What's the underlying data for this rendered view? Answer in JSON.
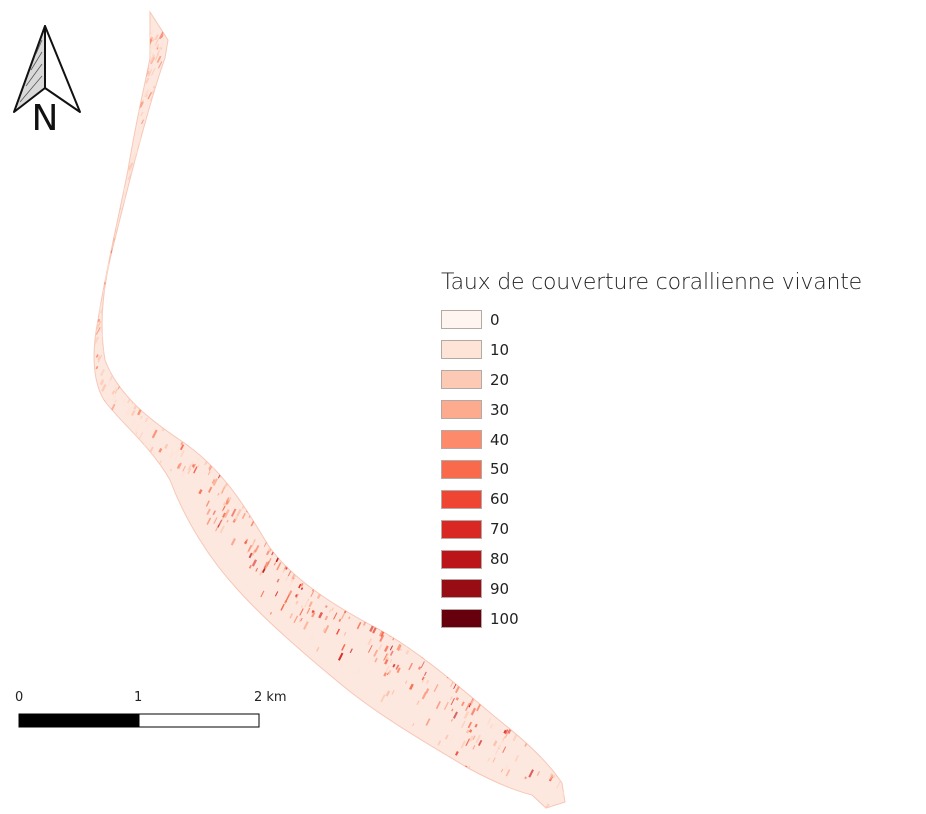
{
  "north_arrow": {
    "label": "N"
  },
  "legend": {
    "title": "Taux de couverture corallienne vivante",
    "classes": [
      {
        "label": "0",
        "color": "#fff5f0"
      },
      {
        "label": "10",
        "color": "#fee3d7"
      },
      {
        "label": "20",
        "color": "#fcc9b4"
      },
      {
        "label": "30",
        "color": "#fcab8f"
      },
      {
        "label": "40",
        "color": "#fc8a6b"
      },
      {
        "label": "50",
        "color": "#f9694c"
      },
      {
        "label": "60",
        "color": "#ef4533"
      },
      {
        "label": "70",
        "color": "#d92723"
      },
      {
        "label": "80",
        "color": "#bb151a"
      },
      {
        "label": "90",
        "color": "#980c13"
      },
      {
        "label": "100",
        "color": "#67000d"
      }
    ]
  },
  "scale_bar": {
    "labels": [
      "0",
      "1",
      "2 km"
    ]
  }
}
